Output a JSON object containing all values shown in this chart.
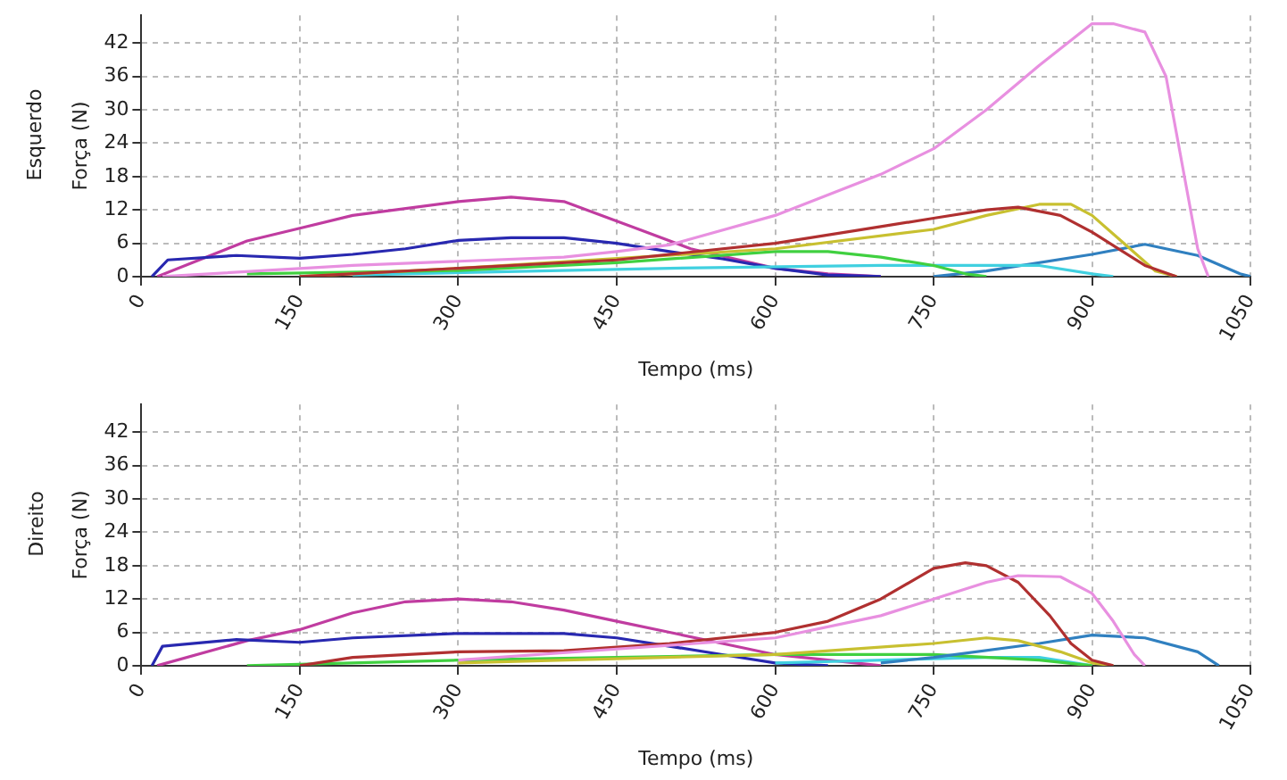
{
  "chart_data": [
    {
      "type": "line",
      "title": "Esquerdo",
      "xlabel": "Tempo (ms)",
      "ylabel": "Força (N)",
      "xlim": [
        0,
        1050
      ],
      "xticks": [
        0,
        150,
        300,
        450,
        600,
        750,
        900,
        1050
      ],
      "ylim": [
        0,
        47
      ],
      "yticks": [
        0,
        6,
        12,
        18,
        24,
        30,
        36,
        42
      ],
      "grid": true,
      "legend": false,
      "marker": "none",
      "line_style": "solid",
      "series": [
        {
          "color": "#e890e0",
          "x": [
            20,
            200,
            400,
            450,
            500,
            600,
            700,
            750,
            800,
            850,
            900,
            920,
            950,
            970,
            1000,
            1010
          ],
          "values": [
            0,
            2,
            3.5,
            4.5,
            5.7,
            11,
            18.4,
            23,
            30,
            38,
            45.5,
            45.5,
            44,
            36,
            5,
            0
          ]
        },
        {
          "color": "#b03030",
          "x": [
            150,
            300,
            450,
            600,
            700,
            750,
            800,
            830,
            870,
            900,
            950,
            980
          ],
          "values": [
            0,
            1.5,
            3,
            6,
            9,
            10.5,
            12,
            12.5,
            11,
            8,
            2,
            0
          ]
        },
        {
          "color": "#c8c030",
          "x": [
            150,
            300,
            600,
            750,
            800,
            850,
            880,
            900,
            930,
            960,
            980
          ],
          "values": [
            0,
            1.5,
            5,
            8.5,
            11,
            13,
            13,
            11,
            6,
            1,
            0
          ]
        },
        {
          "color": "#40d040",
          "x": [
            100,
            300,
            450,
            600,
            650,
            700,
            750,
            780,
            800
          ],
          "values": [
            0.5,
            1.1,
            2.5,
            4.5,
            4.5,
            3.5,
            2,
            0.5,
            0
          ]
        },
        {
          "color": "#40d0e0",
          "x": [
            200,
            500,
            700,
            850,
            900,
            920
          ],
          "values": [
            0.3,
            1.5,
            2,
            2,
            0.5,
            0
          ]
        },
        {
          "color": "#3080c0",
          "x": [
            750,
            800,
            900,
            950,
            1000,
            1040,
            1050
          ],
          "values": [
            0,
            1,
            4,
            5.8,
            3.8,
            0.5,
            0
          ]
        },
        {
          "color": "#2828b0",
          "x": [
            10,
            25,
            90,
            150,
            200,
            250,
            300,
            350,
            400,
            450,
            500,
            550,
            600,
            650,
            700
          ],
          "values": [
            0,
            3,
            3.8,
            3.3,
            4,
            5,
            6.5,
            7,
            7,
            6,
            4.5,
            3.2,
            1.5,
            0.3,
            0
          ]
        },
        {
          "color": "#c03ca0",
          "x": [
            15,
            100,
            150,
            200,
            300,
            350,
            400,
            450,
            520,
            600,
            650,
            700
          ],
          "values": [
            0,
            6.4,
            8.7,
            11,
            13.5,
            14.3,
            13.5,
            10,
            5,
            1.5,
            0.5,
            0
          ]
        }
      ]
    },
    {
      "type": "line",
      "title": "Direito",
      "xlabel": "Tempo (ms)",
      "ylabel": "Força (N)",
      "xlim": [
        0,
        1050
      ],
      "xticks": [
        0,
        150,
        300,
        450,
        600,
        750,
        900,
        1050
      ],
      "ylim": [
        0,
        47
      ],
      "yticks": [
        0,
        6,
        12,
        18,
        24,
        30,
        36,
        42
      ],
      "grid": true,
      "legend": false,
      "marker": "none",
      "line_style": "solid",
      "series": [
        {
          "color": "#e890e0",
          "x": [
            300,
            450,
            600,
            700,
            750,
            800,
            830,
            870,
            900,
            920,
            940,
            950
          ],
          "values": [
            1,
            3,
            5,
            9,
            12,
            15,
            16.2,
            16,
            13,
            8,
            2,
            0
          ]
        },
        {
          "color": "#b03030",
          "x": [
            150,
            200,
            300,
            400,
            500,
            600,
            650,
            700,
            750,
            780,
            800,
            830,
            860,
            880,
            900,
            920
          ],
          "values": [
            0,
            1.5,
            2.5,
            2.7,
            4,
            6,
            8,
            12,
            17.5,
            18.5,
            18,
            15,
            9,
            4,
            1,
            0
          ]
        },
        {
          "color": "#c8c030",
          "x": [
            300,
            600,
            750,
            800,
            830,
            870,
            900,
            920
          ],
          "values": [
            0.5,
            2,
            4,
            5,
            4.5,
            2.5,
            0.5,
            0
          ]
        },
        {
          "color": "#3080c0",
          "x": [
            700,
            750,
            850,
            900,
            950,
            1000,
            1020
          ],
          "values": [
            0.5,
            1.5,
            4,
            5.5,
            5,
            2.5,
            0
          ]
        },
        {
          "color": "#40d040",
          "x": [
            100,
            300,
            600,
            750,
            850,
            900
          ],
          "values": [
            0,
            1,
            2,
            2,
            1,
            0
          ]
        },
        {
          "color": "#40d0e0",
          "x": [
            600,
            800,
            850,
            900
          ],
          "values": [
            0.5,
            1.5,
            1.5,
            0
          ]
        },
        {
          "color": "#2828b0",
          "x": [
            10,
            20,
            90,
            150,
            200,
            300,
            400,
            450,
            500,
            550,
            600,
            650
          ],
          "values": [
            0,
            3.5,
            4.7,
            4.2,
            5,
            5.8,
            5.8,
            5,
            3.5,
            2,
            0.5,
            0
          ]
        },
        {
          "color": "#c03ca0",
          "x": [
            15,
            100,
            150,
            200,
            250,
            300,
            350,
            400,
            450,
            500,
            550,
            600,
            650,
            700
          ],
          "values": [
            0,
            4.5,
            6.5,
            9.5,
            11.5,
            12,
            11.5,
            10,
            8,
            6,
            4,
            2,
            1,
            0
          ]
        }
      ]
    }
  ]
}
